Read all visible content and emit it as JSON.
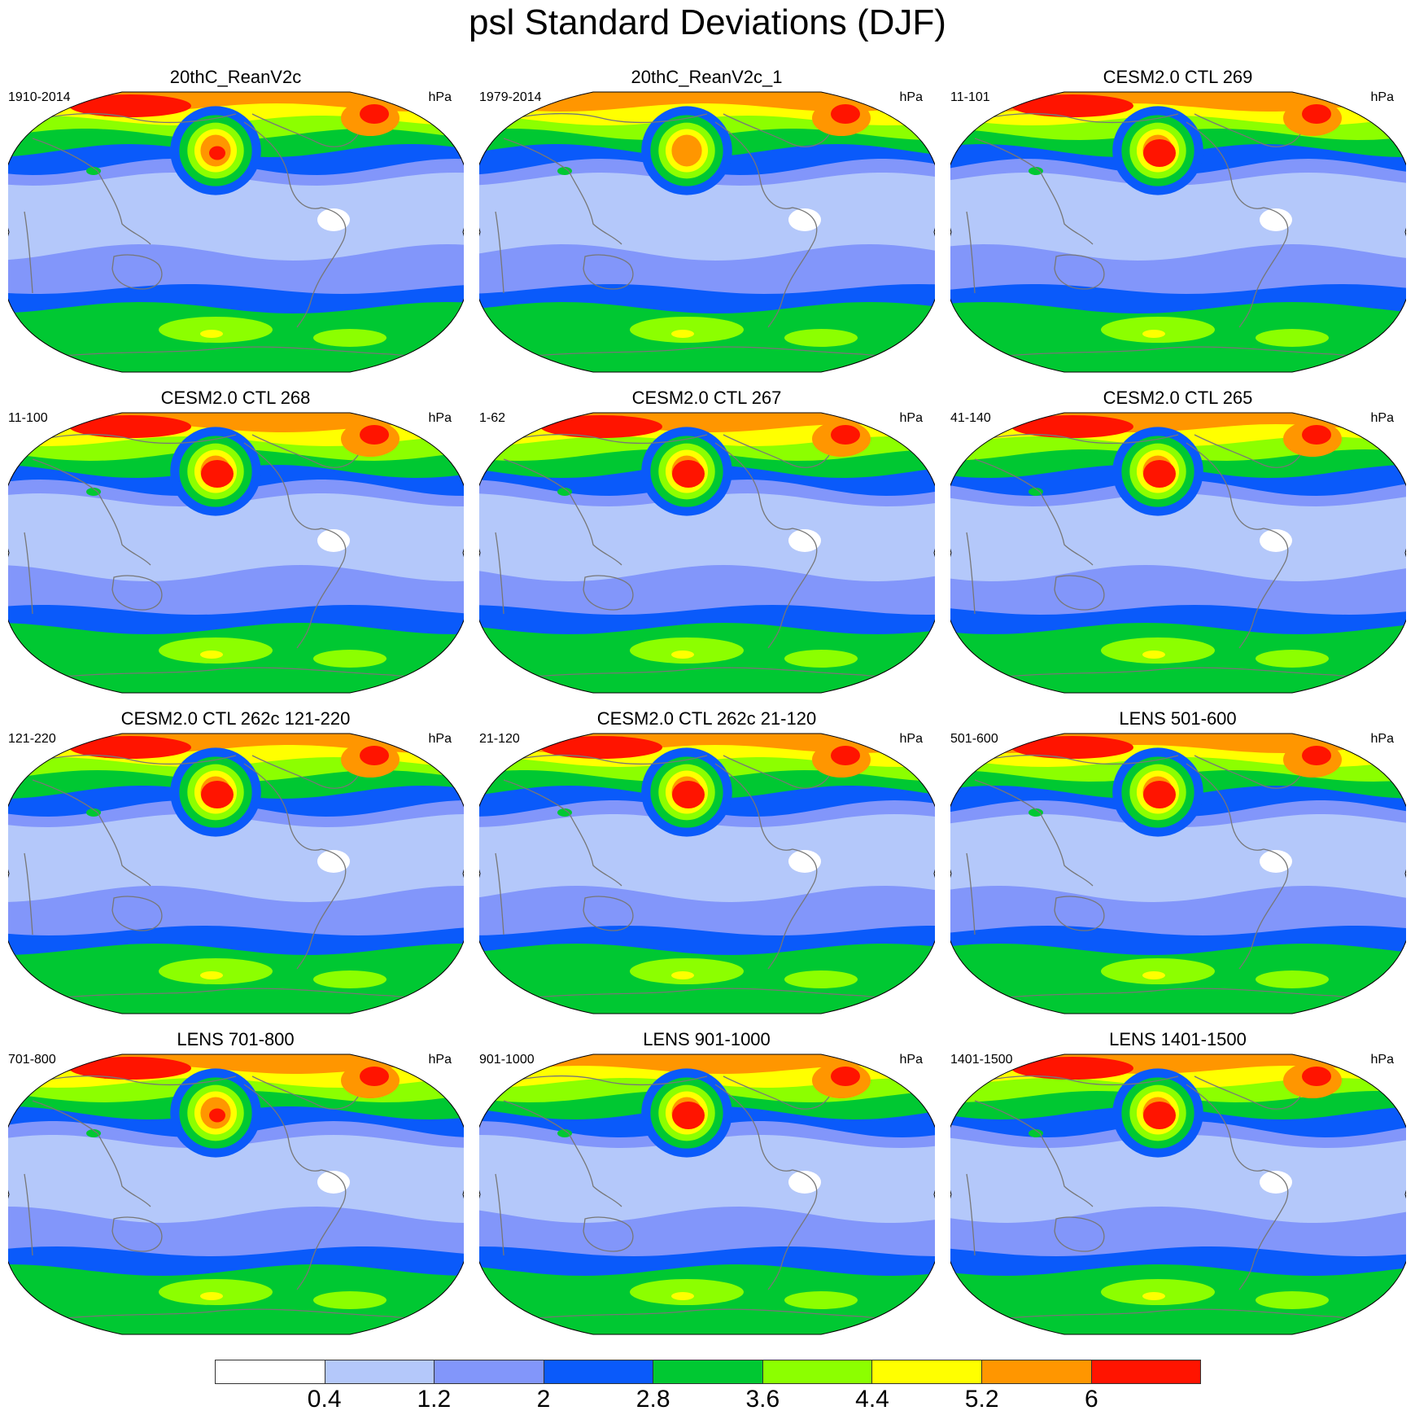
{
  "figure": {
    "title": "psl Standard Deviations (DJF)",
    "units": "hPa"
  },
  "panels": [
    {
      "title": "20thC_ReanV2c",
      "years": "1910-2014",
      "units": "hPa",
      "np_peak": 7,
      "bright": 5
    },
    {
      "title": "20thC_ReanV2c_1",
      "years": "1979-2014",
      "units": "hPa",
      "np_peak": 6,
      "bright": 4
    },
    {
      "title": "CESM2.0 CTL 269",
      "years": "11-101",
      "units": "hPa",
      "np_peak": 8,
      "bright": 6
    },
    {
      "title": "CESM2.0 CTL 268",
      "years": "11-100",
      "units": "hPa",
      "np_peak": 8,
      "bright": 6
    },
    {
      "title": "CESM2.0 CTL 267",
      "years": "1-62",
      "units": "hPa",
      "np_peak": 8,
      "bright": 6
    },
    {
      "title": "CESM2.0 CTL 265",
      "years": "41-140",
      "units": "hPa",
      "np_peak": 8,
      "bright": 6
    },
    {
      "title": "CESM2.0 CTL 262c 121-220",
      "years": "121-220",
      "units": "hPa",
      "np_peak": 8,
      "bright": 5
    },
    {
      "title": "CESM2.0 CTL 262c 21-120",
      "years": "21-120",
      "units": "hPa",
      "np_peak": 8,
      "bright": 5
    },
    {
      "title": "LENS 501-600",
      "years": "501-600",
      "units": "hPa",
      "np_peak": 8,
      "bright": 6
    },
    {
      "title": "LENS 701-800",
      "years": "701-800",
      "units": "hPa",
      "np_peak": 7,
      "bright": 5
    },
    {
      "title": "LENS 901-1000",
      "years": "901-1000",
      "units": "hPa",
      "np_peak": 8,
      "bright": 4
    },
    {
      "title": "LENS 1401-1500",
      "years": "1401-1500",
      "units": "hPa",
      "np_peak": 8,
      "bright": 5
    }
  ],
  "colorbar": {
    "colors": [
      "#ffffff",
      "#b4c8fa",
      "#8296fa",
      "#0a5afa",
      "#00c832",
      "#8cff00",
      "#ffff00",
      "#ff9600",
      "#ff1400"
    ],
    "labels": [
      "0.4",
      "1.2",
      "2",
      "2.8",
      "3.6",
      "4.4",
      "5.2",
      "6"
    ]
  },
  "map_style": {
    "coastline_color": "#777777",
    "ocean_outline": "#000000"
  }
}
